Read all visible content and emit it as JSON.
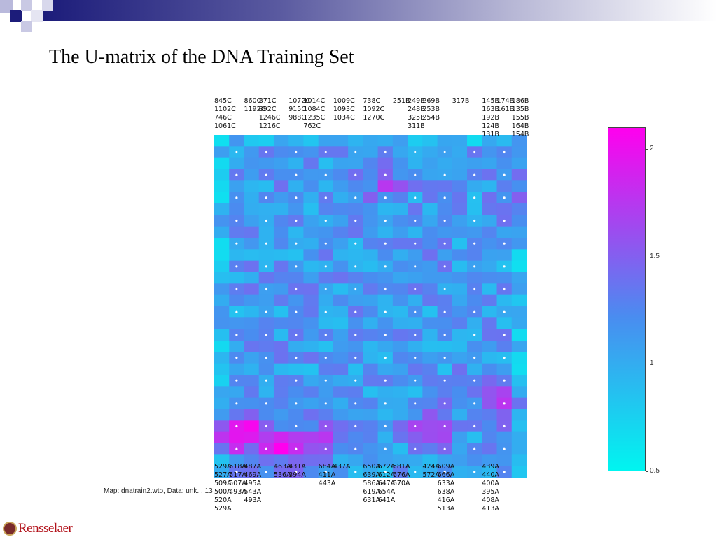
{
  "slide": {
    "title": "The U-matrix of the DNA Training Set",
    "caption": "Map: dnatrain2.wto, Data: unk... 13",
    "logo_text": "Rensselaer"
  },
  "colors": {
    "low": "#00f5f0",
    "mid": "#4a8cf0",
    "high": "#ff00ee",
    "brand": "#b3131b",
    "header": "#1c1c7a"
  },
  "chart_data": {
    "type": "heatmap",
    "title": "",
    "colorbar": {
      "min": 0.5,
      "max": 2.1,
      "ticks": [
        0.5,
        1,
        1.5,
        2
      ],
      "tick_labels": [
        "0.5",
        "1",
        "1.5",
        "2"
      ]
    },
    "hot_spots": [
      {
        "col": 1,
        "row": 26,
        "value": 2.0
      },
      {
        "col": 4,
        "row": 27,
        "value": 1.9
      },
      {
        "col": 7,
        "row": 26,
        "value": 1.8
      },
      {
        "col": 14,
        "row": 25,
        "value": 1.9
      },
      {
        "col": 19,
        "row": 23,
        "value": 1.8
      },
      {
        "col": 11,
        "row": 4,
        "value": 1.6
      },
      {
        "col": 20,
        "row": 4,
        "value": 1.7
      },
      {
        "col": 2,
        "row": 25,
        "value": 1.9
      }
    ],
    "top_labels": [
      {
        "col": 0,
        "lines": [
          "845C",
          "1102C",
          "746C",
          "1061C"
        ]
      },
      {
        "col": 2,
        "lines": [
          "860C",
          "1192C"
        ]
      },
      {
        "col": 3,
        "lines": [
          "871C",
          "892C",
          "1246C",
          "1216C"
        ]
      },
      {
        "col": 5,
        "lines": [
          "1072C",
          "915C",
          "988C"
        ]
      },
      {
        "col": 6,
        "lines": [
          "1014C",
          "1084C",
          "1235C",
          "762C"
        ]
      },
      {
        "col": 8,
        "lines": [
          "1009C",
          "1093C",
          "1034C"
        ]
      },
      {
        "col": 10,
        "lines": [
          "738C",
          "1092C",
          "1270C"
        ]
      },
      {
        "col": 12,
        "lines": [
          "251B"
        ]
      },
      {
        "col": 13,
        "lines": [
          "249B",
          "248B",
          "325B",
          "311B"
        ]
      },
      {
        "col": 14,
        "lines": [
          "269B",
          "253B",
          "254B"
        ]
      },
      {
        "col": 16,
        "lines": [
          "317B"
        ]
      },
      {
        "col": 18,
        "lines": [
          "145B",
          "163B",
          "192B",
          "124B",
          "131B"
        ]
      },
      {
        "col": 19,
        "lines": [
          "174B",
          "161B"
        ]
      },
      {
        "col": 20,
        "lines": [
          "186B",
          "135B",
          "155B",
          "164B",
          "154B"
        ]
      }
    ],
    "bottom_labels": [
      {
        "col": 0,
        "lines": [
          "529A",
          "527A",
          "509A",
          "500A",
          "520A",
          "529A"
        ]
      },
      {
        "col": 1,
        "lines": [
          "518A",
          "517A",
          "507A",
          "493A"
        ]
      },
      {
        "col": 2,
        "lines": [
          "487A",
          "469A",
          "495A",
          "543A",
          "493A"
        ]
      },
      {
        "col": 4,
        "lines": [
          "463A",
          "536A"
        ]
      },
      {
        "col": 5,
        "lines": [
          "431A",
          "394A"
        ]
      },
      {
        "col": 7,
        "lines": [
          "684A",
          "411A",
          "443A"
        ]
      },
      {
        "col": 8,
        "lines": [
          "437A"
        ]
      },
      {
        "col": 10,
        "lines": [
          "650A",
          "639A",
          "586A",
          "619A",
          "631A"
        ]
      },
      {
        "col": 11,
        "lines": [
          "672A",
          "612A",
          "647A",
          "654A",
          "641A"
        ]
      },
      {
        "col": 12,
        "lines": [
          "581A",
          "676A",
          "670A"
        ]
      },
      {
        "col": 14,
        "lines": [
          "424A",
          "572A"
        ]
      },
      {
        "col": 15,
        "lines": [
          "609A",
          "666A",
          "633A",
          "638A",
          "416A",
          "513A"
        ]
      },
      {
        "col": 18,
        "lines": [
          "439A",
          "440A",
          "400A",
          "395A",
          "408A",
          "413A"
        ]
      }
    ]
  }
}
